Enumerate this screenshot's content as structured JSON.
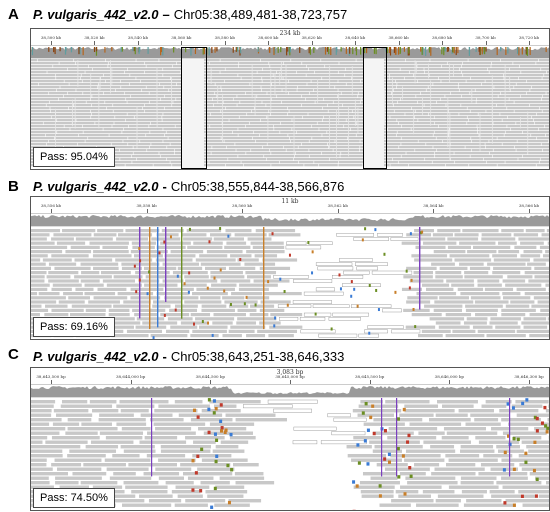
{
  "panels": [
    {
      "letter": "A",
      "genome": "P. vulgaris_442_v2.0",
      "separator": "–",
      "region": "Chr05:38,489,481-38,723,757",
      "span": "234 kb",
      "ticks": [
        "38,500 kb",
        "38,520 kb",
        "38,540 kb",
        "38,560 kb",
        "38,580 kb",
        "38,600 kb",
        "38,620 kb",
        "38,640 kb",
        "38,660 kb",
        "38,680 kb",
        "38,700 kb",
        "38,720 kb"
      ],
      "pass": "Pass: 95.04%",
      "style": "dense"
    },
    {
      "letter": "B",
      "genome": "P. vulgaris_442_v2.0",
      "separator": "-",
      "region": "Chr05:38,555,844-38,566,876",
      "span": "11 kb",
      "ticks": [
        "38,556 kb",
        "38,558 kb",
        "38,560 kb",
        "38,562 kb",
        "38,564 kb",
        "38,566 kb"
      ],
      "pass": "Pass: 69.16%",
      "style": "medium"
    },
    {
      "letter": "C",
      "genome": "P. vulgaris_442_v2.0",
      "separator": "-",
      "region": "Chr05:38,643,251-38,646,333",
      "span": "3,083 bp",
      "ticks": [
        "38,643,500 bp",
        "38,644,000 bp",
        "38,644,500 bp",
        "38,645,000 bp",
        "38,645,500 bp",
        "38,646,000 bp",
        "38,646,300 bp"
      ],
      "pass": "Pass: 74.50%",
      "style": "sparse"
    }
  ],
  "colors": {
    "read": "#c8c8c8",
    "coverage": "#9a9a9a",
    "mismatch_green": "#6b8e23",
    "mismatch_orange": "#c87f2a",
    "insertion_purple": "#7b3fbf",
    "deletion_black": "#222222",
    "highlight_box": "#000000"
  }
}
